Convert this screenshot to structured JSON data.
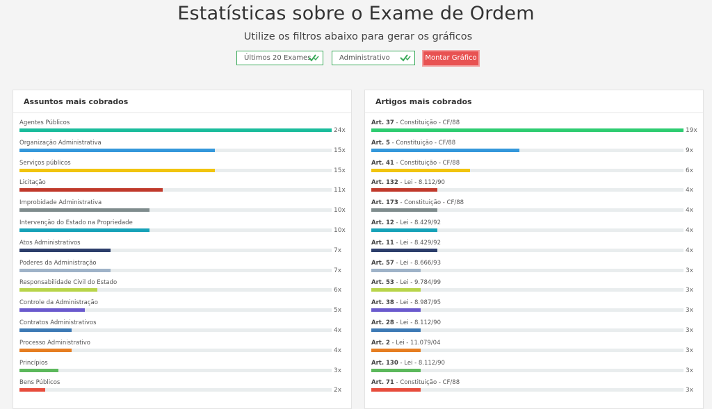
{
  "header": {
    "title": "Estatísticas sobre o Exame de Ordem",
    "subtitle": "Utilize os filtros abaixo para gerar os gráficos"
  },
  "filters": {
    "exams": "Últimos 20 Exames",
    "subject": "Administrativo",
    "submit_label": "Montar Gráfico",
    "check_color": "#3aaa5a"
  },
  "subjects_panel": {
    "title": "Assuntos mais cobrados",
    "max": 24,
    "items": [
      {
        "label": "Agentes Públicos",
        "value": 24,
        "count": "24x",
        "color": "#1abc9c"
      },
      {
        "label": "Organização Administrativa",
        "value": 15,
        "count": "15x",
        "color": "#3498db"
      },
      {
        "label": "Serviços públicos",
        "value": 15,
        "count": "15x",
        "color": "#f1c40f"
      },
      {
        "label": "Licitação",
        "value": 11,
        "count": "11x",
        "color": "#c0392b"
      },
      {
        "label": "Improbidade Administrativa",
        "value": 10,
        "count": "10x",
        "color": "#7f8c8d"
      },
      {
        "label": "Intervenção do Estado na Propriedade",
        "value": 10,
        "count": "10x",
        "color": "#17a2b8"
      },
      {
        "label": "Atos Administrativos",
        "value": 7,
        "count": "7x",
        "color": "#2c3e6b"
      },
      {
        "label": "Poderes da Administração",
        "value": 7,
        "count": "7x",
        "color": "#9fb3c8"
      },
      {
        "label": "Responsabilidade Civil do Estado",
        "value": 6,
        "count": "6x",
        "color": "#b8d44a"
      },
      {
        "label": "Controle da Administração",
        "value": 5,
        "count": "5x",
        "color": "#6a5acd"
      },
      {
        "label": "Contratos Administrativos",
        "value": 4,
        "count": "4x",
        "color": "#3d7ab5"
      },
      {
        "label": "Processo Administrativo",
        "value": 4,
        "count": "4x",
        "color": "#e67e22"
      },
      {
        "label": "Princípios",
        "value": 3,
        "count": "3x",
        "color": "#5cb85c"
      },
      {
        "label": "Bens Públicos",
        "value": 2,
        "count": "2x",
        "color": "#e74c3c"
      }
    ]
  },
  "articles_panel": {
    "title": "Artigos mais cobrados",
    "max": 19,
    "items": [
      {
        "art": "Art. 37",
        "law": " - Constituição - CF/88",
        "value": 19,
        "count": "19x",
        "color": "#2ecc71"
      },
      {
        "art": "Art. 5",
        "law": " - Constituição - CF/88",
        "value": 9,
        "count": "9x",
        "color": "#3498db"
      },
      {
        "art": "Art. 41",
        "law": " - Constituição - CF/88",
        "value": 6,
        "count": "6x",
        "color": "#f1c40f"
      },
      {
        "art": "Art. 132",
        "law": " - Lei - 8.112/90",
        "value": 4,
        "count": "4x",
        "color": "#c0392b"
      },
      {
        "art": "Art. 173",
        "law": " - Constituição - CF/88",
        "value": 4,
        "count": "4x",
        "color": "#7f8c8d"
      },
      {
        "art": "Art. 12",
        "law": " - Lei - 8.429/92",
        "value": 4,
        "count": "4x",
        "color": "#17a2b8"
      },
      {
        "art": "Art. 11",
        "law": " - Lei - 8.429/92",
        "value": 4,
        "count": "4x",
        "color": "#2c3e6b"
      },
      {
        "art": "Art. 57",
        "law": " - Lei - 8.666/93",
        "value": 3,
        "count": "3x",
        "color": "#9fb3c8"
      },
      {
        "art": "Art. 53",
        "law": " - Lei - 9.784/99",
        "value": 3,
        "count": "3x",
        "color": "#b8d44a"
      },
      {
        "art": "Art. 38",
        "law": " - Lei - 8.987/95",
        "value": 3,
        "count": "3x",
        "color": "#6a5acd"
      },
      {
        "art": "Art. 28",
        "law": " - Lei - 8.112/90",
        "value": 3,
        "count": "3x",
        "color": "#3d7ab5"
      },
      {
        "art": "Art. 2",
        "law": " - Lei - 11.079/04",
        "value": 3,
        "count": "3x",
        "color": "#e67e22"
      },
      {
        "art": "Art. 130",
        "law": " - Lei - 8.112/90",
        "value": 3,
        "count": "3x",
        "color": "#5cb85c"
      },
      {
        "art": "Art. 71",
        "law": " - Constituição - CF/88",
        "value": 3,
        "count": "3x",
        "color": "#e74c3c"
      }
    ]
  }
}
